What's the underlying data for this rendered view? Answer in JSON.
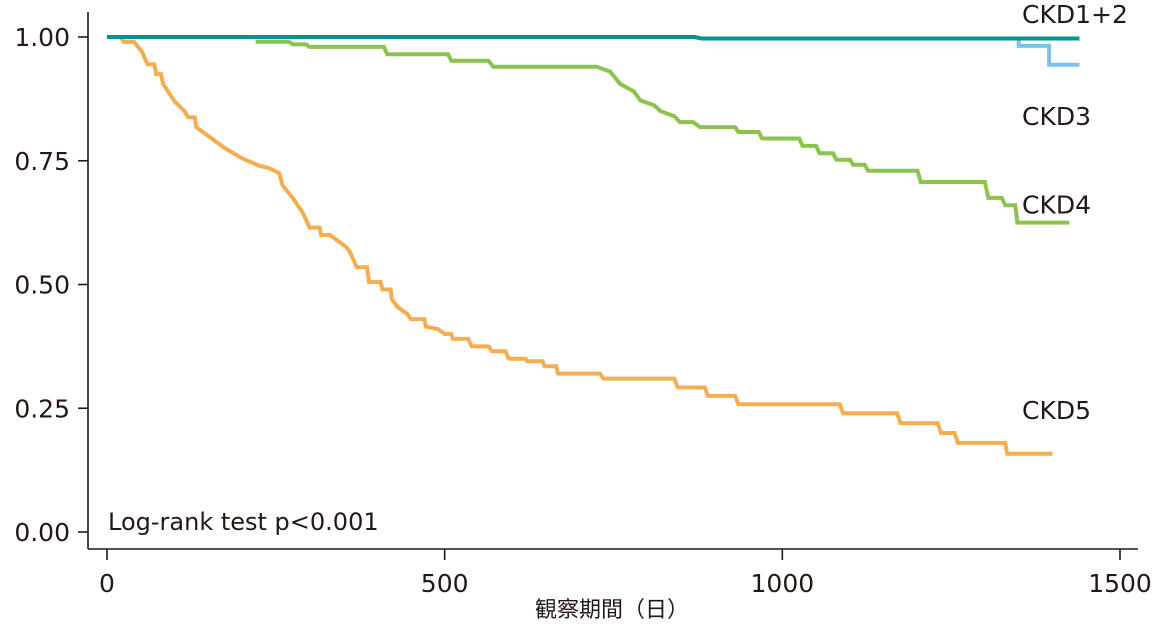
{
  "chart_data": {
    "type": "line",
    "subtype": "kaplan-meier-step",
    "title": "",
    "xlabel": "観察期間（日）",
    "ylabel": "",
    "xlim": [
      0,
      1500
    ],
    "ylim": [
      0,
      1.0
    ],
    "x_ticks": [
      0,
      500,
      1000,
      1500
    ],
    "x_tick_labels": [
      "0",
      "500",
      "1000",
      "1500"
    ],
    "y_ticks": [
      0,
      0.25,
      0.5,
      0.75,
      1.0
    ],
    "y_tick_labels": [
      "0.00",
      "0.25",
      "0.50",
      "0.75",
      "1.00"
    ],
    "grid": false,
    "legend_position": "inline-right",
    "annotations": [
      "Log-rank test p<0.001"
    ],
    "series": [
      {
        "name": "CKD1+2",
        "color": "#009490",
        "label_y": 1.046,
        "points": [
          [
            0,
            1.0
          ],
          [
            870,
            1.0
          ],
          [
            880,
            0.997
          ],
          [
            1440,
            0.997
          ]
        ]
      },
      {
        "name": "CKD3",
        "color": "#7cc3ea",
        "label_y": 0.84,
        "points": [
          [
            1350,
            1.0
          ],
          [
            1350,
            0.982
          ],
          [
            1395,
            0.982
          ],
          [
            1395,
            0.944
          ],
          [
            1440,
            0.944
          ]
        ]
      },
      {
        "name": "CKD4",
        "color": "#8bc34f",
        "label_y": 0.662,
        "points": [
          [
            220,
            0.99
          ],
          [
            270,
            0.99
          ],
          [
            275,
            0.985
          ],
          [
            295,
            0.985
          ],
          [
            300,
            0.98
          ],
          [
            410,
            0.98
          ],
          [
            415,
            0.965
          ],
          [
            505,
            0.965
          ],
          [
            510,
            0.952
          ],
          [
            565,
            0.952
          ],
          [
            572,
            0.94
          ],
          [
            725,
            0.94
          ],
          [
            745,
            0.93
          ],
          [
            760,
            0.905
          ],
          [
            780,
            0.89
          ],
          [
            790,
            0.872
          ],
          [
            810,
            0.862
          ],
          [
            820,
            0.85
          ],
          [
            840,
            0.84
          ],
          [
            848,
            0.828
          ],
          [
            868,
            0.828
          ],
          [
            878,
            0.818
          ],
          [
            930,
            0.818
          ],
          [
            935,
            0.808
          ],
          [
            965,
            0.808
          ],
          [
            970,
            0.795
          ],
          [
            1025,
            0.795
          ],
          [
            1030,
            0.78
          ],
          [
            1050,
            0.78
          ],
          [
            1055,
            0.765
          ],
          [
            1075,
            0.765
          ],
          [
            1080,
            0.752
          ],
          [
            1100,
            0.752
          ],
          [
            1105,
            0.742
          ],
          [
            1122,
            0.742
          ],
          [
            1127,
            0.73
          ],
          [
            1200,
            0.73
          ],
          [
            1205,
            0.707
          ],
          [
            1300,
            0.707
          ],
          [
            1305,
            0.675
          ],
          [
            1325,
            0.675
          ],
          [
            1330,
            0.66
          ],
          [
            1345,
            0.66
          ],
          [
            1348,
            0.625
          ],
          [
            1425,
            0.625
          ]
        ]
      },
      {
        "name": "CKD5",
        "color": "#f5ad52",
        "label_y": 0.246,
        "points": [
          [
            20,
            1.0
          ],
          [
            25,
            0.99
          ],
          [
            40,
            0.99
          ],
          [
            52,
            0.97
          ],
          [
            60,
            0.945
          ],
          [
            70,
            0.945
          ],
          [
            73,
            0.925
          ],
          [
            80,
            0.925
          ],
          [
            83,
            0.905
          ],
          [
            88,
            0.895
          ],
          [
            100,
            0.87
          ],
          [
            115,
            0.85
          ],
          [
            120,
            0.838
          ],
          [
            130,
            0.838
          ],
          [
            132,
            0.818
          ],
          [
            150,
            0.8
          ],
          [
            175,
            0.775
          ],
          [
            200,
            0.755
          ],
          [
            225,
            0.74
          ],
          [
            240,
            0.735
          ],
          [
            255,
            0.725
          ],
          [
            260,
            0.7
          ],
          [
            275,
            0.675
          ],
          [
            290,
            0.645
          ],
          [
            300,
            0.615
          ],
          [
            315,
            0.615
          ],
          [
            317,
            0.6
          ],
          [
            330,
            0.6
          ],
          [
            345,
            0.585
          ],
          [
            355,
            0.575
          ],
          [
            360,
            0.565
          ],
          [
            370,
            0.535
          ],
          [
            385,
            0.535
          ],
          [
            388,
            0.505
          ],
          [
            405,
            0.505
          ],
          [
            408,
            0.49
          ],
          [
            420,
            0.49
          ],
          [
            422,
            0.47
          ],
          [
            430,
            0.455
          ],
          [
            445,
            0.44
          ],
          [
            450,
            0.43
          ],
          [
            470,
            0.43
          ],
          [
            472,
            0.415
          ],
          [
            490,
            0.41
          ],
          [
            500,
            0.4
          ],
          [
            510,
            0.4
          ],
          [
            512,
            0.39
          ],
          [
            535,
            0.39
          ],
          [
            540,
            0.375
          ],
          [
            565,
            0.375
          ],
          [
            570,
            0.365
          ],
          [
            590,
            0.365
          ],
          [
            595,
            0.35
          ],
          [
            620,
            0.35
          ],
          [
            622,
            0.345
          ],
          [
            645,
            0.345
          ],
          [
            648,
            0.335
          ],
          [
            665,
            0.335
          ],
          [
            668,
            0.32
          ],
          [
            730,
            0.32
          ],
          [
            735,
            0.31
          ],
          [
            840,
            0.31
          ],
          [
            845,
            0.292
          ],
          [
            885,
            0.292
          ],
          [
            890,
            0.275
          ],
          [
            930,
            0.275
          ],
          [
            935,
            0.258
          ],
          [
            1085,
            0.258
          ],
          [
            1090,
            0.24
          ],
          [
            1170,
            0.24
          ],
          [
            1175,
            0.22
          ],
          [
            1230,
            0.22
          ],
          [
            1235,
            0.2
          ],
          [
            1255,
            0.2
          ],
          [
            1260,
            0.18
          ],
          [
            1330,
            0.18
          ],
          [
            1333,
            0.158
          ],
          [
            1400,
            0.158
          ]
        ]
      }
    ]
  }
}
